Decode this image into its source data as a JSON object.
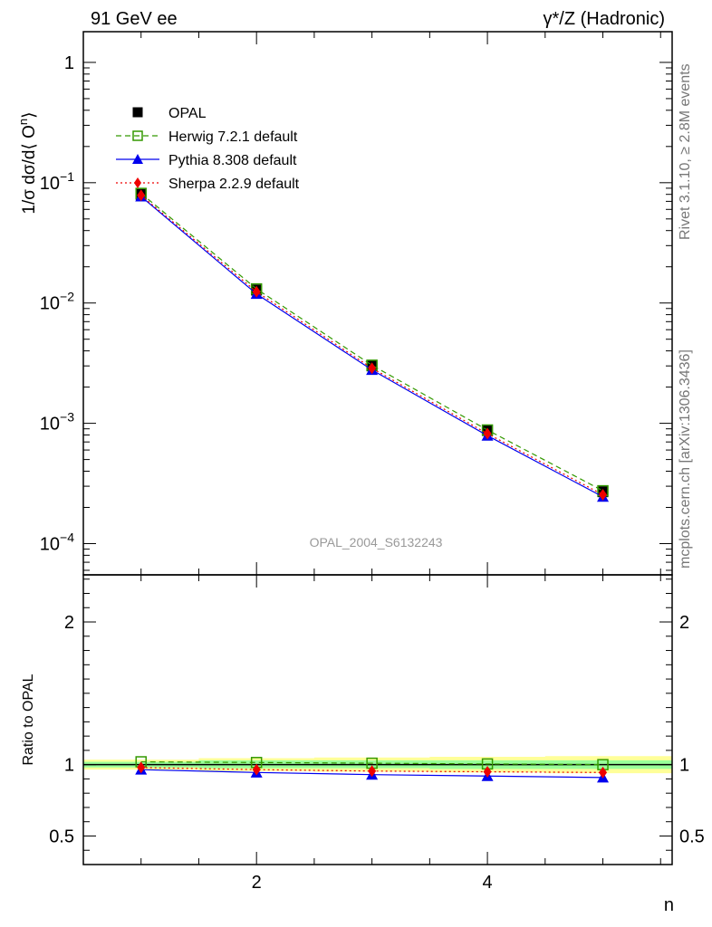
{
  "header": {
    "left": "91 GeV ee",
    "right": "γ*/Z (Hadronic)"
  },
  "side_text": {
    "rivet": "Rivet 3.1.10, ≥ 2.8M events",
    "mcplots": "mcplots.cern.ch [arXiv:1306.3436]"
  },
  "watermark": "OPAL_2004_S6132243",
  "chart_data": [
    {
      "type": "line",
      "title": "",
      "ylabel": "1/σ dσ/d⟨ Oⁿ⟩",
      "ylabel_parts": {
        "base": "1/σ dσ/d⟨ O",
        "sup": "n",
        "end": "⟩"
      },
      "xlabel": "n",
      "yscale": "log",
      "xlim": [
        0.5,
        5.6
      ],
      "ylim": [
        5.5e-05,
        1.8
      ],
      "yticks": [
        {
          "value": 1,
          "label": "1"
        },
        {
          "value": 0.1,
          "base": "10",
          "exp": "−1"
        },
        {
          "value": 0.01,
          "base": "10",
          "exp": "−2"
        },
        {
          "value": 0.001,
          "base": "10",
          "exp": "−3"
        },
        {
          "value": 0.0001,
          "base": "10",
          "exp": "−4"
        }
      ],
      "legend_position": "top-left",
      "x": [
        1,
        2,
        3,
        4,
        5
      ],
      "series": [
        {
          "name": "OPAL",
          "values": [
            0.08,
            0.0128,
            0.003,
            0.00087,
            0.00027
          ],
          "color": "#000000",
          "marker": "filled-square",
          "line": "none"
        },
        {
          "name": "Herwig 7.2.1 default",
          "values": [
            0.0815,
            0.0131,
            0.00304,
            0.00088,
            0.000275
          ],
          "color": "#339900",
          "marker": "open-square",
          "line": "dashed"
        },
        {
          "name": "Pythia 8.308 default",
          "values": [
            0.0768,
            0.0119,
            0.00278,
            0.00079,
            0.000245
          ],
          "color": "#0000ee",
          "marker": "triangle",
          "line": "solid"
        },
        {
          "name": "Sherpa 2.2.9 default",
          "values": [
            0.0785,
            0.0124,
            0.00287,
            0.00082,
            0.000255
          ],
          "color": "#ee0000",
          "marker": "diamond",
          "line": "dotted"
        }
      ]
    },
    {
      "type": "line",
      "title": "",
      "ylabel": "Ratio to OPAL",
      "xlabel": "n",
      "xlim": [
        0.5,
        5.6
      ],
      "ylim": [
        0.3,
        2.33
      ],
      "yticks": [
        {
          "value": 0.5,
          "label": "0.5"
        },
        {
          "value": 1,
          "label": "1"
        },
        {
          "value": 2,
          "label": "2"
        }
      ],
      "xticks": [
        {
          "value": 2,
          "label": "2"
        },
        {
          "value": 4,
          "label": "4"
        }
      ],
      "x": [
        1,
        2,
        3,
        4,
        5
      ],
      "bands": [
        {
          "name": "yellow",
          "color": "#ffff99",
          "lower": [
            0.965,
            0.955,
            0.95,
            0.945,
            0.94
          ],
          "upper": [
            1.035,
            1.045,
            1.05,
            1.055,
            1.06
          ]
        },
        {
          "name": "green",
          "color": "#99ff99",
          "lower": [
            0.98,
            0.975,
            0.975,
            0.97,
            0.97
          ],
          "upper": [
            1.02,
            1.03,
            1.03,
            1.03,
            1.03
          ]
        }
      ],
      "series": [
        {
          "name": "Herwig 7.2.1 default",
          "values": [
            1.02,
            1.015,
            1.01,
            1.005,
            1.0
          ],
          "color": "#339900",
          "marker": "open-square",
          "line": "dashed"
        },
        {
          "name": "Pythia 8.308 default",
          "values": [
            0.965,
            0.945,
            0.93,
            0.92,
            0.91
          ],
          "color": "#0000ee",
          "marker": "triangle",
          "line": "solid"
        },
        {
          "name": "Sherpa 2.2.9 default",
          "values": [
            0.98,
            0.965,
            0.955,
            0.95,
            0.945
          ],
          "color": "#ee0000",
          "marker": "diamond",
          "line": "dotted"
        }
      ]
    }
  ]
}
